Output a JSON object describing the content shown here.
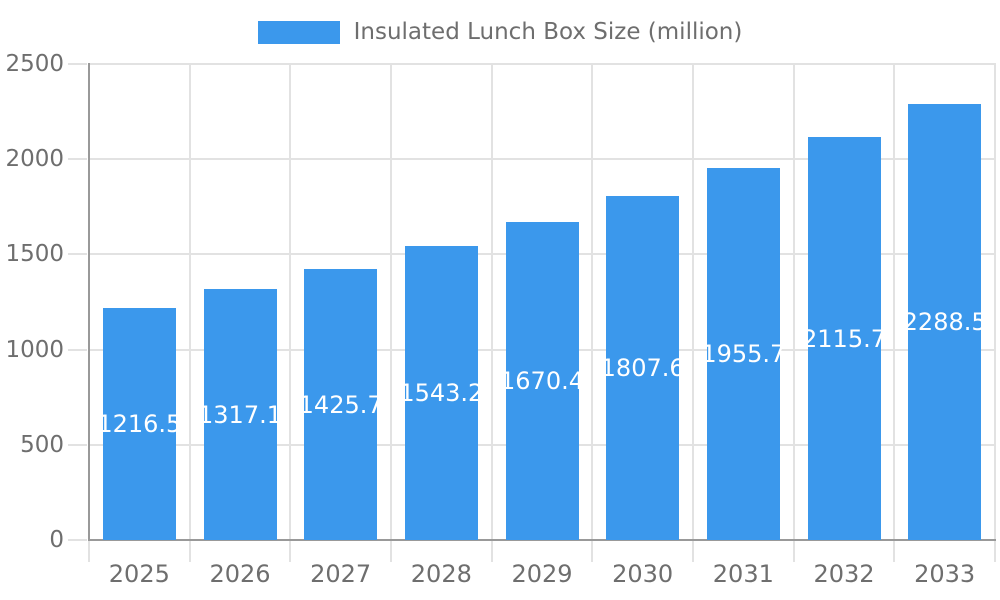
{
  "legend": {
    "label": "Insulated Lunch Box Size (million)"
  },
  "chart_data": {
    "type": "bar",
    "title": "",
    "xlabel": "",
    "ylabel": "",
    "series_name": "Insulated Lunch Box Size (million)",
    "categories": [
      "2025",
      "2026",
      "2027",
      "2028",
      "2029",
      "2030",
      "2031",
      "2032",
      "2033"
    ],
    "values": [
      1216.5,
      1317.1,
      1425.7,
      1543.2,
      1670.4,
      1807.6,
      1955.7,
      2115.7,
      2288.5
    ],
    "value_labels": [
      "1216.5",
      "1317.1",
      "1425.7",
      "1543.2",
      "1670.4",
      "1807.6",
      "1955.7",
      "2115.7",
      "2288.5"
    ],
    "ylim": [
      0,
      2500
    ],
    "yticks": [
      0,
      500,
      1000,
      1500,
      2000,
      2500
    ],
    "ytick_labels": [
      "0",
      "500",
      "1000",
      "1500",
      "2000",
      "2500"
    ],
    "grid": true,
    "legend_position": "top",
    "colors": {
      "bar": "#3B98EC",
      "grid": "#E2E2E2",
      "axis": "#999999",
      "text": "#6E6E6E",
      "value_label": "#FFFFFF",
      "background": "#FFFFFF"
    }
  }
}
